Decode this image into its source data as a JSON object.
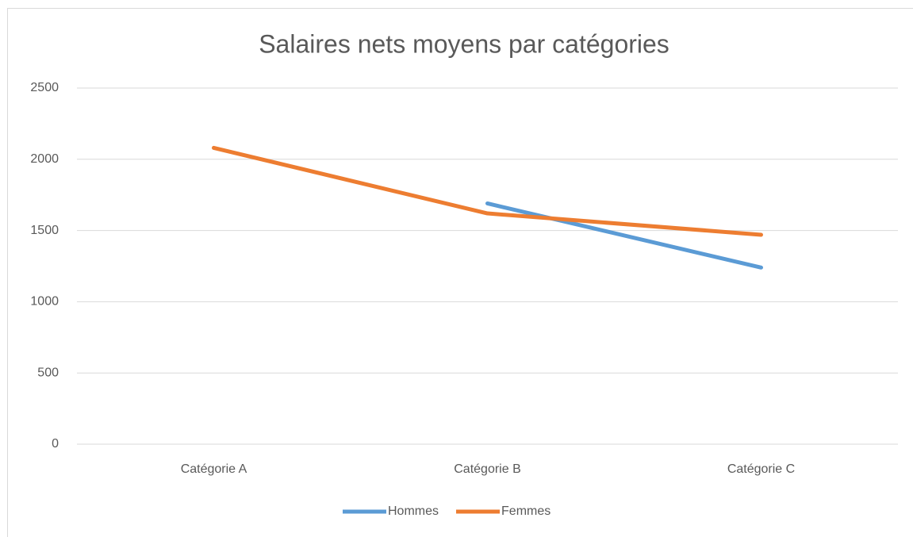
{
  "chart_data": {
    "type": "line",
    "title": "Salaires nets moyens par catégories",
    "categories": [
      "Catégorie A",
      "Catégorie B",
      "Catégorie C"
    ],
    "series": [
      {
        "name": "Hommes",
        "color": "#5b9bd5",
        "values": [
          null,
          1690,
          1240
        ]
      },
      {
        "name": "Femmes",
        "color": "#ed7d31",
        "values": [
          2080,
          1620,
          1470
        ]
      }
    ],
    "ylim": [
      0,
      2500
    ],
    "yticks": [
      0,
      500,
      1000,
      1500,
      2000,
      2500
    ],
    "grid": true,
    "legend": "bottom"
  }
}
